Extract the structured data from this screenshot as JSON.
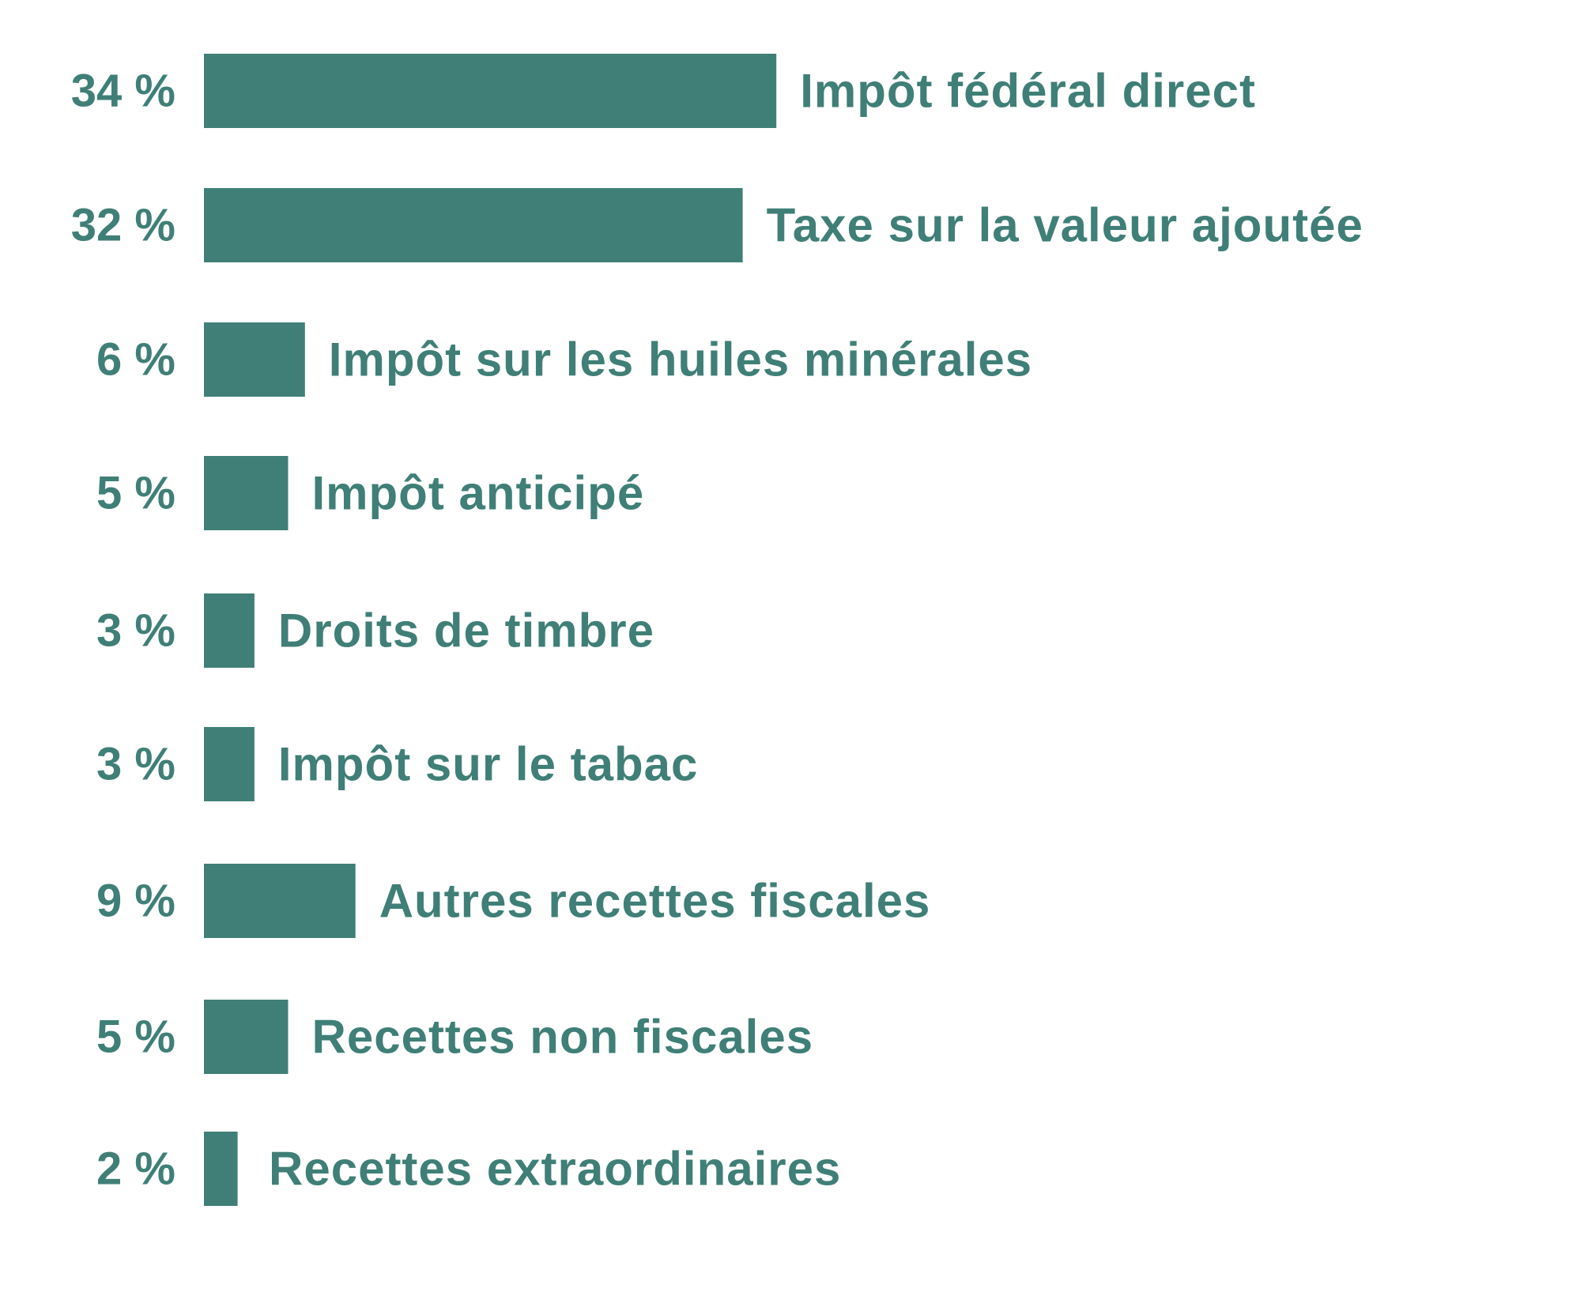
{
  "chart_data": {
    "type": "bar",
    "orientation": "horizontal",
    "categories": [
      "Impôt fédéral direct",
      "Taxe sur la valeur ajoutée",
      "Impôt sur les huiles minérales",
      "Impôt anticipé",
      "Droits de timbre",
      "Impôt sur le tabac",
      "Autres recettes fiscales",
      "Recettes non fiscales",
      "Recettes extraordinaires"
    ],
    "values": [
      34,
      32,
      6,
      5,
      3,
      3,
      9,
      5,
      2
    ],
    "value_labels": [
      "34 %",
      "32 %",
      "6 %",
      "5 %",
      "3 %",
      "3 %",
      "9 %",
      "5 %",
      "2 %"
    ],
    "bar_color": "#3f7f77",
    "text_color": "#3f7f77",
    "background": "#ffffff",
    "title": "",
    "xlabel": "",
    "ylabel": "",
    "grid": false,
    "legend": "none"
  }
}
